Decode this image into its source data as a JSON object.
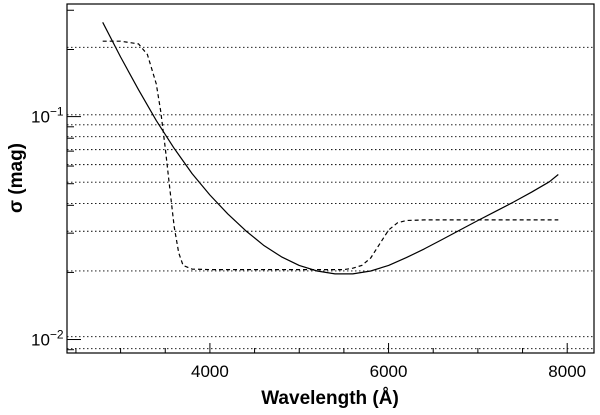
{
  "chart_data": {
    "type": "line",
    "title": "",
    "xlabel": "Wavelength (Å)",
    "ylabel": "σ (mag)",
    "xlim": [
      2400,
      8300
    ],
    "ylim": [
      0.0087,
      0.32
    ],
    "yscale": "log",
    "grid": "horizontal dotted lines",
    "x_ticks": [
      4000,
      6000,
      8000
    ],
    "x_tick_labels": [
      "4000",
      "6000",
      "8000"
    ],
    "y_ticks": [
      0.01,
      0.1
    ],
    "y_tick_labels": [
      {
        "base": "10",
        "exponent": "−2"
      },
      {
        "base": "10",
        "exponent": "−1"
      }
    ],
    "gridlines_y": [
      0.0091,
      0.0103,
      0.0203,
      0.0306,
      0.0408,
      0.0508,
      0.0609,
      0.0711,
      0.0813,
      0.0919,
      0.1019,
      0.2045
    ],
    "series": [
      {
        "style": "solid",
        "x": [
          2800,
          3000,
          3200,
          3400,
          3600,
          3800,
          4000,
          4200,
          4400,
          4600,
          4800,
          5000,
          5200,
          5400,
          5600,
          5800,
          6000,
          6200,
          6400,
          6600,
          6800,
          7000,
          7200,
          7400,
          7600,
          7800,
          7900
        ],
        "y": [
          0.265,
          0.185,
          0.132,
          0.096,
          0.072,
          0.0555,
          0.0445,
          0.0366,
          0.0308,
          0.0265,
          0.0235,
          0.0215,
          0.0203,
          0.0197,
          0.0197,
          0.0203,
          0.0215,
          0.0233,
          0.0255,
          0.0281,
          0.031,
          0.0342,
          0.0376,
          0.0414,
          0.0458,
          0.051,
          0.055
        ]
      },
      {
        "style": "dashed",
        "x": [
          2800,
          3000,
          3200,
          3300,
          3400,
          3450,
          3500,
          3550,
          3600,
          3650,
          3700,
          3800,
          4000,
          5000,
          5500,
          5600,
          5700,
          5800,
          5900,
          6000,
          6100,
          6200,
          6400,
          7000,
          7900
        ],
        "y": [
          0.218,
          0.218,
          0.212,
          0.19,
          0.14,
          0.105,
          0.072,
          0.048,
          0.032,
          0.0245,
          0.0215,
          0.0207,
          0.0206,
          0.0206,
          0.0206,
          0.0209,
          0.0215,
          0.0232,
          0.0268,
          0.031,
          0.0334,
          0.0342,
          0.0344,
          0.0344,
          0.0344
        ]
      }
    ]
  }
}
